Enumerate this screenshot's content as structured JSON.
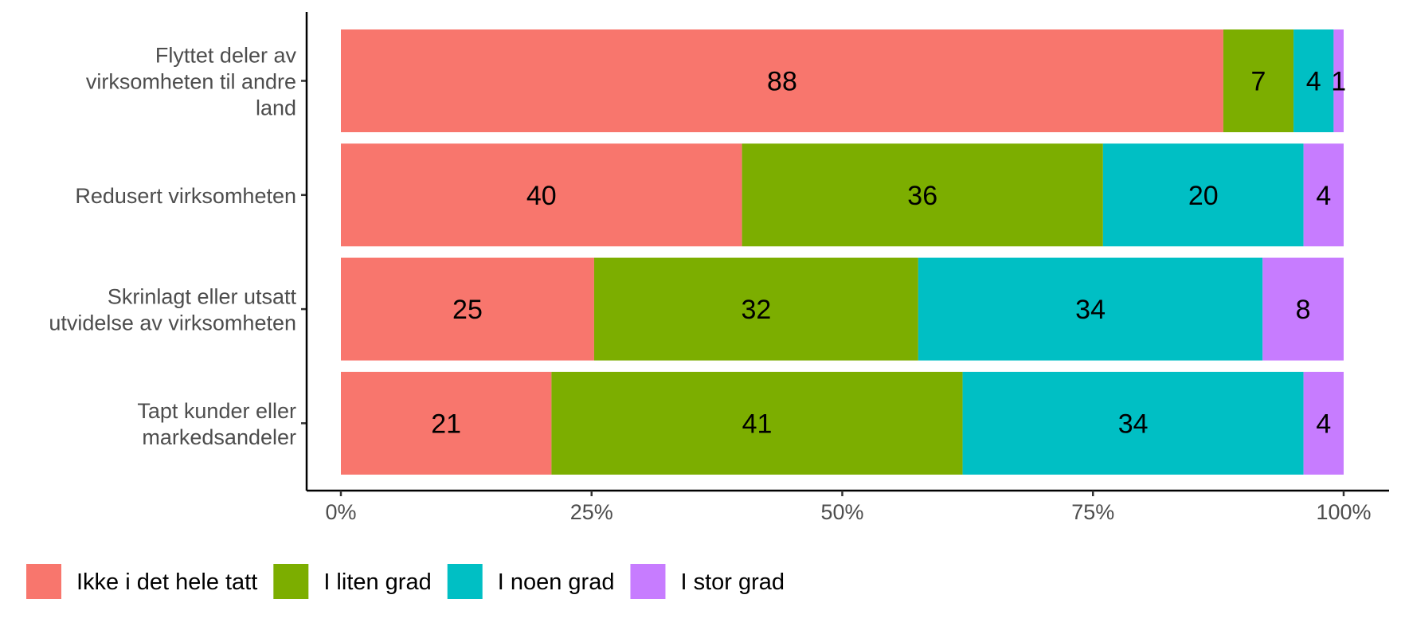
{
  "chart_data": {
    "type": "bar",
    "orientation": "horizontal",
    "stacked": "percent",
    "categories": [
      "Flyttet deler av virksomheten til andre land",
      "Redusert virksomheten",
      "Skrinlagt eller utsatt utvidelse av virksomheten",
      "Tapt kunder eller markedsandeler"
    ],
    "category_lines": [
      [
        "Flyttet deler av",
        "virksomheten til andre",
        "land"
      ],
      [
        "Redusert virksomheten"
      ],
      [
        "Skrinlagt eller utsatt",
        "utvidelse av virksomheten"
      ],
      [
        "Tapt kunder eller",
        "markedsandeler"
      ]
    ],
    "series": [
      {
        "name": "Ikke i det hele tatt",
        "color": "#F8766D",
        "values": [
          88,
          40,
          25,
          21
        ]
      },
      {
        "name": "I liten grad",
        "color": "#7CAE00",
        "values": [
          7,
          36,
          32,
          41
        ]
      },
      {
        "name": "I noen grad",
        "color": "#00BFC4",
        "values": [
          4,
          20,
          34,
          34
        ]
      },
      {
        "name": "I stor grad",
        "color": "#C77CFF",
        "values": [
          1,
          4,
          8,
          4
        ]
      }
    ],
    "x_ticks": [
      "0%",
      "25%",
      "50%",
      "75%",
      "100%"
    ],
    "xlim": [
      0,
      100
    ],
    "title": "",
    "xlabel": "",
    "ylabel": "",
    "grid": false,
    "legend_position": "bottom"
  }
}
